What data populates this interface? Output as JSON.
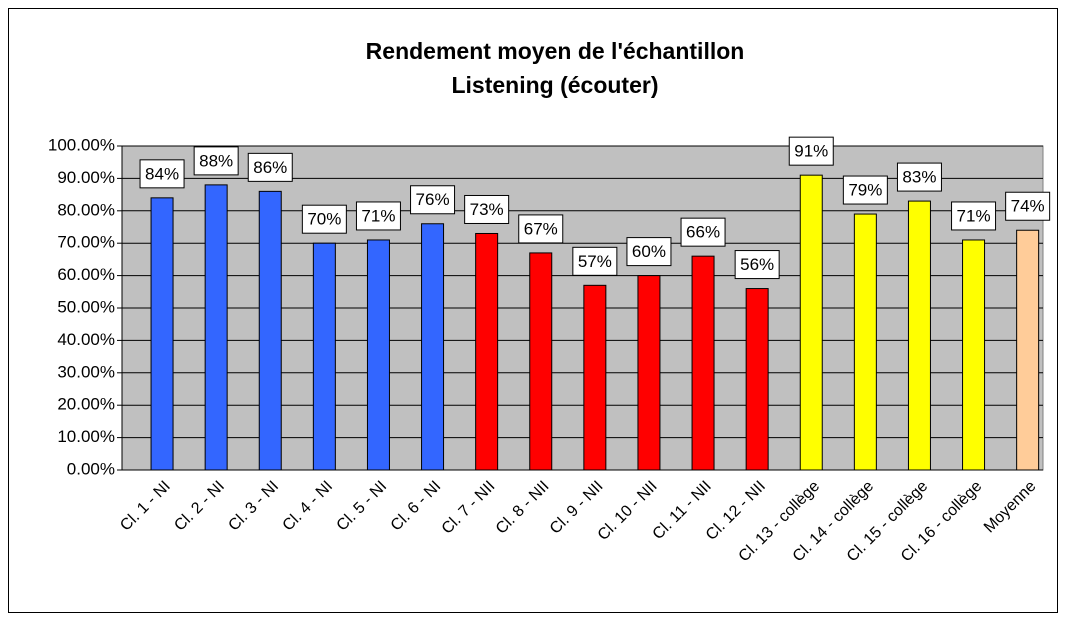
{
  "chart_data": {
    "type": "bar",
    "title": [
      "Rendement moyen de l'échantillon",
      "Listening (écouter)"
    ],
    "categories": [
      "Cl. 1 - NI",
      "Cl. 2 - NI",
      "Cl. 3 - NI",
      "Cl. 4 - NI",
      "Cl. 5 - NI",
      "Cl. 6 - NI",
      "Cl. 7 - NII",
      "Cl. 8 - NII",
      "Cl. 9 - NII",
      "Cl. 10 - NII",
      "Cl. 11 - NII",
      "Cl. 12 - NII",
      "Cl. 13 - collège",
      "Cl. 14 - collège",
      "Cl. 15 - collège",
      "Cl. 16 - collège",
      "Moyenne"
    ],
    "values": [
      84,
      88,
      86,
      70,
      71,
      76,
      73,
      67,
      57,
      60,
      66,
      56,
      91,
      79,
      83,
      71,
      74
    ],
    "value_labels": [
      "84%",
      "88%",
      "86%",
      "70%",
      "71%",
      "76%",
      "73%",
      "67%",
      "57%",
      "60%",
      "66%",
      "56%",
      "91%",
      "79%",
      "83%",
      "71%",
      "74%"
    ],
    "colors": [
      "#3366ff",
      "#3366ff",
      "#3366ff",
      "#3366ff",
      "#3366ff",
      "#3366ff",
      "#ff0000",
      "#ff0000",
      "#ff0000",
      "#ff0000",
      "#ff0000",
      "#ff0000",
      "#ffff00",
      "#ffff00",
      "#ffff00",
      "#ffff00",
      "#ffcc99"
    ],
    "ylim": [
      0,
      100
    ],
    "yticks": [
      {
        "value": 0,
        "label": "0.00%"
      },
      {
        "value": 10,
        "label": "10.00%"
      },
      {
        "value": 20,
        "label": "20.00%"
      },
      {
        "value": 30,
        "label": "30.00%"
      },
      {
        "value": 40,
        "label": "40.00%"
      },
      {
        "value": 50,
        "label": "50.00%"
      },
      {
        "value": 60,
        "label": "60.00%"
      },
      {
        "value": 70,
        "label": "70.00%"
      },
      {
        "value": 80,
        "label": "80.00%"
      },
      {
        "value": 90,
        "label": "90.00%"
      },
      {
        "value": 100,
        "label": "100.00%"
      }
    ],
    "grid": true
  }
}
